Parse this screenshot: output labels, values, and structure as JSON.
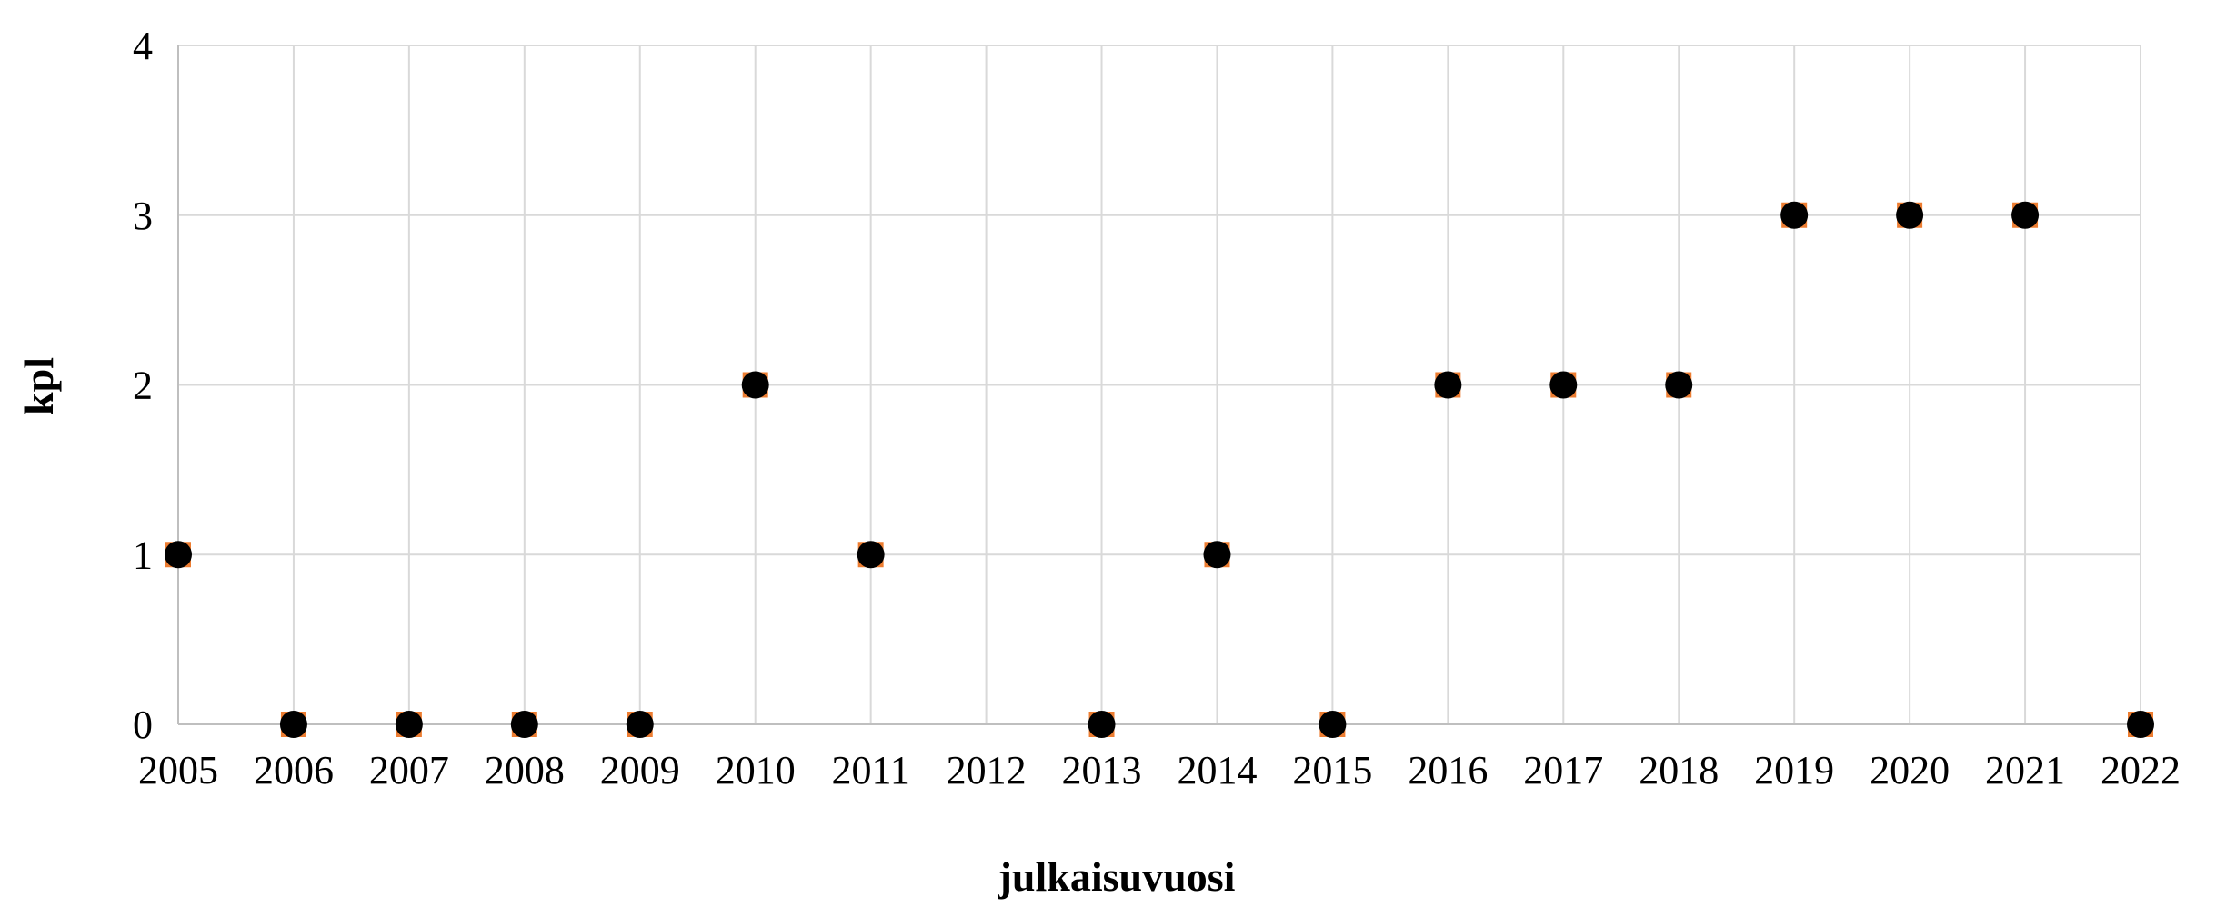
{
  "chart_data": {
    "type": "scatter",
    "xlabel": "julkaisuvuosi",
    "ylabel": "kpl",
    "categories": [
      "2005",
      "2006",
      "2007",
      "2008",
      "2009",
      "2010",
      "2011",
      "2012",
      "2013",
      "2014",
      "2015",
      "2016",
      "2017",
      "2018",
      "2019",
      "2020",
      "2021",
      "2022"
    ],
    "series": [
      {
        "values": [
          1,
          0,
          0,
          0,
          0,
          2,
          1,
          null,
          0,
          1,
          0,
          2,
          2,
          2,
          3,
          3,
          3,
          0
        ],
        "marker_color": "#000000",
        "underlay_color": "#ED7D31"
      }
    ],
    "ylim": [
      0,
      4
    ],
    "yticks": [
      "0",
      "1",
      "2",
      "3",
      "4"
    ],
    "grid": true,
    "grid_color": "#D9D9D9",
    "axis_color": "#BFBFBF",
    "legend": "none"
  }
}
